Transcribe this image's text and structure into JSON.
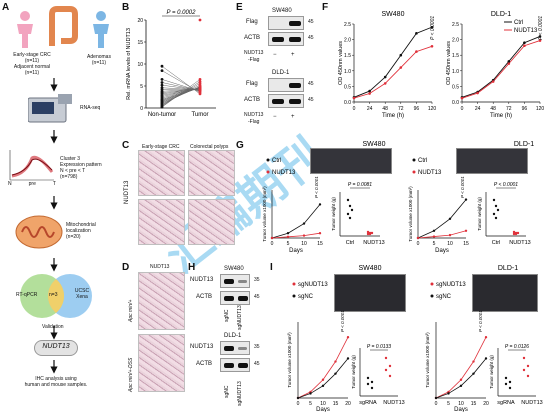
{
  "panels": {
    "A": "A",
    "B": "B",
    "C": "C",
    "D": "D",
    "E": "E",
    "F": "F",
    "G": "G",
    "H": "H",
    "I": "I"
  },
  "a": {
    "early_crc": "Early-stage CRC",
    "early_n": "(n=11)",
    "adjacent": "Adjacent normal",
    "adjacent_n": "(n=11)",
    "adenomas": "Adenomas",
    "adenomas_n": "(n=11)",
    "rnaseq": "RNA-seq",
    "cluster_title": "Cluster 3",
    "cluster_pattern": "Expression pattern",
    "cluster_rule": "N < pre < T",
    "cluster_n": "(n=798)",
    "cluster_xt": [
      "N",
      "pre",
      "T"
    ],
    "mito_1": "Mitochondrial",
    "mito_2": "localization",
    "mito_n": "(n=20)",
    "venn_left": "RT-qPCR",
    "venn_mid": "n=3",
    "venn_right_1": "UCSC",
    "venn_right_2": "Xena",
    "validation": "Validation",
    "gene": "NUDT13",
    "ihc_1": "IHC analysis using",
    "ihc_2": "human and mouse samples."
  },
  "b": {
    "ylabel": "Rel. mRNA levels of NUDT13",
    "pval": "P = 0.0002",
    "xt": [
      "Non-tumor",
      "Tumor"
    ],
    "yt": [
      "0",
      "5",
      "10",
      "15",
      "20"
    ],
    "pairs": [
      [
        9.5,
        3.2
      ],
      [
        8.5,
        3.5
      ],
      [
        6.5,
        3.8
      ],
      [
        5.8,
        3.9
      ],
      [
        5.2,
        4.0
      ],
      [
        4.6,
        4.1
      ],
      [
        4.2,
        4.2
      ],
      [
        3.8,
        4.3
      ],
      [
        3.5,
        4.3
      ],
      [
        3.2,
        4.4
      ],
      [
        2.9,
        4.4
      ],
      [
        2.6,
        4.5
      ],
      [
        2.3,
        4.5
      ],
      [
        2.0,
        4.6
      ],
      [
        1.8,
        4.6
      ],
      [
        1.6,
        4.7
      ],
      [
        1.4,
        4.7
      ],
      [
        1.2,
        4.8
      ],
      [
        1.0,
        4.9
      ],
      [
        0.8,
        5.2
      ],
      [
        0.6,
        5.6
      ],
      [
        0.4,
        6.0
      ],
      [
        0.2,
        6.5
      ]
    ],
    "tumor_extra": [
      20
    ]
  },
  "c": {
    "col1": "Early-stage CRC",
    "col2": "Colorectal polyps",
    "rowlabel": "NUDT13"
  },
  "d": {
    "title": "NUDT13",
    "row1": "Apc min/+",
    "row2": "Apc min/+-DSS"
  },
  "e": {
    "sw480": "SW480",
    "dld1": "DLD-1",
    "flag": "Flag",
    "actb": "ACTB",
    "mw_sw": [
      "45",
      "45"
    ],
    "mw_dl": [
      "45",
      "45"
    ],
    "bottom1": "NUDT13",
    "bottom2": "-Flag",
    "minus": "−",
    "plus": "+"
  },
  "f": {
    "titles": [
      "SW480",
      "DLD-1"
    ],
    "ylabel": "OD 450nm values",
    "xlabel": "Time (h)",
    "xt": [
      "0",
      "24",
      "48",
      "72",
      "96",
      "120"
    ],
    "yt": [
      "0.0",
      "0.5",
      "1.0",
      "1.5",
      "2.0",
      "2.5"
    ],
    "pvals": [
      "P < 0.0001",
      "P < 0.0001"
    ],
    "legend": [
      "Ctrl",
      "NUDT13"
    ]
  },
  "g": {
    "titles": [
      "SW480",
      "DLD-1"
    ],
    "legend": [
      "Ctrl",
      "NUDT13"
    ],
    "ylabel": "Tumor volume x1000 (mm³)",
    "xlabel": "Days",
    "xt": [
      "0",
      "5",
      "10",
      "15"
    ],
    "ylabel2": "Tumor weight (g)",
    "pvals": [
      "P = 0.0081",
      "P < 0.0001"
    ],
    "pvals_curve": [
      "P < 0.0001",
      "P < 0.0001"
    ],
    "xt2": [
      "Ctrl",
      "NUDT13"
    ]
  },
  "h": {
    "sw480": "SW480",
    "dld1": "DLD-1",
    "nudt13": "NUDT13",
    "actb": "ACTB",
    "mw_a": "35",
    "mw_b": "45",
    "sg1": "sgNC",
    "sg2": "sgNUDT13"
  },
  "i": {
    "titles": [
      "SW480",
      "DLD-1"
    ],
    "legend": [
      "sgNUDT13",
      "sgNC"
    ],
    "ylabel": "Tumor volume x1000 (mm³)",
    "xlabel": "Days",
    "xt": [
      "0",
      "5",
      "10",
      "15",
      "20"
    ],
    "ylabel2": "Tumor weight (g)",
    "pvals": [
      "P = 0.0133",
      "P = 0.0126"
    ],
    "pvals_curve": [
      "P < 0.0001",
      "P < 0.0001"
    ],
    "xt2": [
      "sgRNA",
      "NUDT13"
    ]
  },
  "watermark": "汇编期刊",
  "colors": {
    "ctrl": "#111111",
    "nudt13": "#e0303a",
    "blue": "#2b6fd6",
    "venn_green": "#a6d98a",
    "venn_blue": "#8cc4ee",
    "venn_overlap": "#f0d06a"
  }
}
